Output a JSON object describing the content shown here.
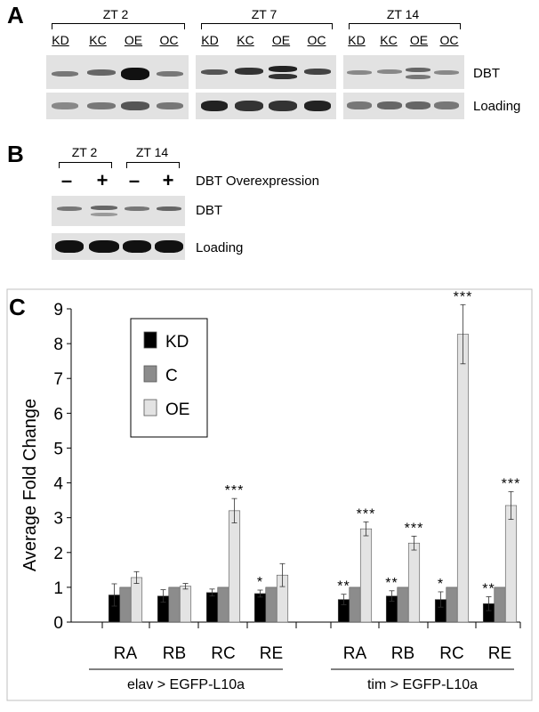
{
  "panel_a": {
    "letter": "A",
    "groups": [
      {
        "label": "ZT 2",
        "lanes": [
          "KD",
          "KC",
          "OE",
          "OC"
        ]
      },
      {
        "label": "ZT 7",
        "lanes": [
          "KD",
          "KC",
          "OE",
          "OC"
        ]
      },
      {
        "label": "ZT 14",
        "lanes": [
          "KD",
          "KC",
          "OE",
          "OC"
        ]
      }
    ],
    "row_labels": [
      "DBT",
      "Loading"
    ]
  },
  "panel_b": {
    "letter": "B",
    "groups": [
      {
        "label": "ZT 2",
        "signs": [
          "–",
          "+"
        ]
      },
      {
        "label": "ZT 14",
        "signs": [
          "–",
          "+"
        ]
      }
    ],
    "header_label": "DBT Overexpression",
    "row_labels": [
      "DBT",
      "Loading"
    ]
  },
  "chart_data": {
    "letter": "C",
    "type": "bar",
    "ylabel": "Average Fold Change",
    "ylim": [
      0,
      9
    ],
    "yticks": [
      "0",
      "1",
      "2",
      "3",
      "4",
      "5",
      "6",
      "7",
      "8",
      "9"
    ],
    "legend": {
      "placement": "top-left",
      "entries": [
        "KD",
        "C",
        "OE"
      ]
    },
    "groups": [
      {
        "name": "elav > EGFP-L10a",
        "categories": [
          "RA",
          "RB",
          "RC",
          "RE"
        ]
      },
      {
        "name": "tim > EGFP-L10a",
        "categories": [
          "RA",
          "RB",
          "RC",
          "RE"
        ]
      }
    ],
    "series": [
      {
        "name": "KD",
        "color": "#000000",
        "values": [
          0.78,
          0.75,
          0.85,
          0.82,
          0.65,
          0.75,
          0.65,
          0.53
        ],
        "errors": [
          0.32,
          0.18,
          0.1,
          0.1,
          0.15,
          0.15,
          0.22,
          0.2
        ],
        "sig": [
          "",
          "",
          "",
          "*",
          "**",
          "**",
          "*",
          "**"
        ]
      },
      {
        "name": "C",
        "color": "#8c8c8c",
        "values": [
          1,
          1,
          1,
          1,
          1,
          1,
          1,
          1
        ],
        "errors": [
          0,
          0,
          0,
          0,
          0,
          0,
          0,
          0
        ],
        "sig": [
          "",
          "",
          "",
          "",
          "",
          "",
          "",
          ""
        ]
      },
      {
        "name": "OE",
        "color": "#e3e3e3",
        "values": [
          1.28,
          1.03,
          3.2,
          1.35,
          2.68,
          2.27,
          8.27,
          3.35
        ],
        "errors": [
          0.17,
          0.08,
          0.35,
          0.33,
          0.2,
          0.2,
          0.85,
          0.4
        ],
        "sig": [
          "",
          "",
          "***",
          "",
          "***",
          "***",
          "***",
          "***"
        ]
      }
    ]
  }
}
